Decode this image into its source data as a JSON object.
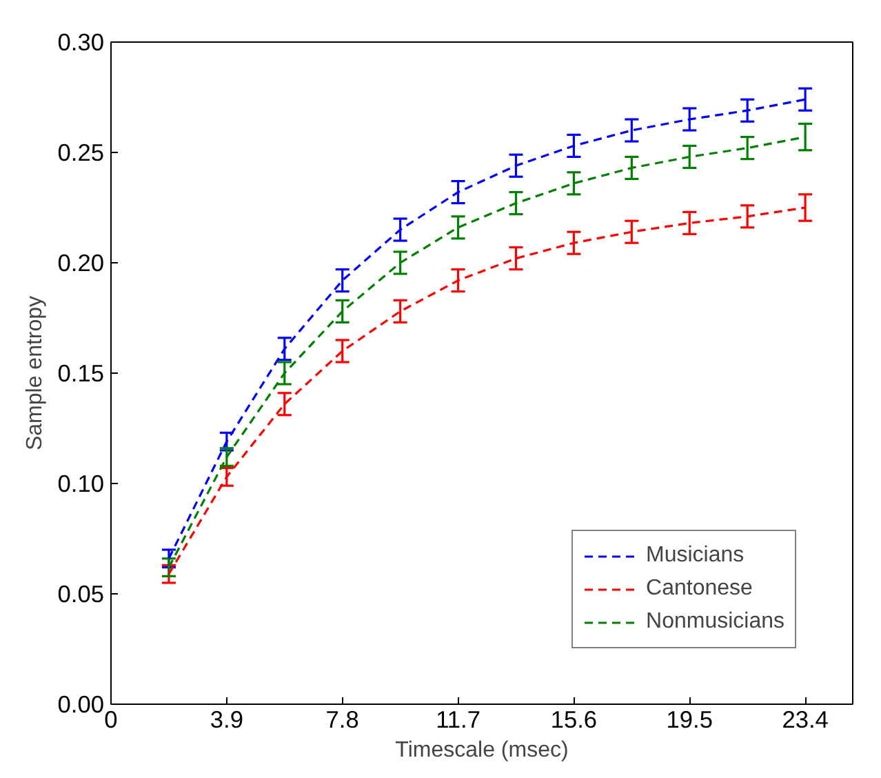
{
  "chart_data": {
    "type": "line",
    "xlabel": "Timescale (msec)",
    "ylabel": "Sample entropy",
    "x": [
      1.95,
      3.9,
      5.85,
      7.8,
      9.75,
      11.7,
      13.65,
      15.6,
      17.55,
      19.5,
      21.45,
      23.4
    ],
    "xlim": [
      0,
      25
    ],
    "xticks": [
      0,
      3.9,
      7.8,
      11.7,
      15.6,
      19.5,
      23.4
    ],
    "ylim": [
      0,
      0.3
    ],
    "yticks": [
      {
        "value": 0,
        "label": "0.00"
      },
      {
        "value": 0.05,
        "label": "0.05"
      },
      {
        "value": 0.1,
        "label": "0.10"
      },
      {
        "value": 0.15,
        "label": "0.15"
      },
      {
        "value": 0.2,
        "label": "0.20"
      },
      {
        "value": 0.25,
        "label": "0.25"
      },
      {
        "value": 0.3,
        "label": "0.30"
      }
    ],
    "grid": false,
    "legend": "bottom right",
    "line_style": "dashed",
    "marker": "none",
    "series": [
      {
        "name": "Musicians",
        "color": "#0000ff",
        "values": [
          0.066,
          0.119,
          0.161,
          0.192,
          0.215,
          0.232,
          0.244,
          0.253,
          0.26,
          0.265,
          0.269,
          0.274
        ],
        "errors": [
          0.004,
          0.004,
          0.005,
          0.005,
          0.005,
          0.005,
          0.005,
          0.005,
          0.005,
          0.005,
          0.005,
          0.005
        ]
      },
      {
        "name": "Cantonese",
        "color": "#ff0000",
        "values": [
          0.059,
          0.103,
          0.136,
          0.16,
          0.178,
          0.192,
          0.202,
          0.209,
          0.214,
          0.218,
          0.221,
          0.225
        ],
        "errors": [
          0.004,
          0.004,
          0.005,
          0.005,
          0.005,
          0.005,
          0.005,
          0.005,
          0.005,
          0.005,
          0.005,
          0.006
        ]
      },
      {
        "name": "Nonmusicians",
        "color": "#008000",
        "values": [
          0.062,
          0.112,
          0.15,
          0.178,
          0.2,
          0.216,
          0.227,
          0.236,
          0.243,
          0.248,
          0.252,
          0.257
        ],
        "errors": [
          0.004,
          0.004,
          0.005,
          0.005,
          0.005,
          0.005,
          0.005,
          0.005,
          0.005,
          0.005,
          0.005,
          0.006
        ]
      }
    ]
  }
}
